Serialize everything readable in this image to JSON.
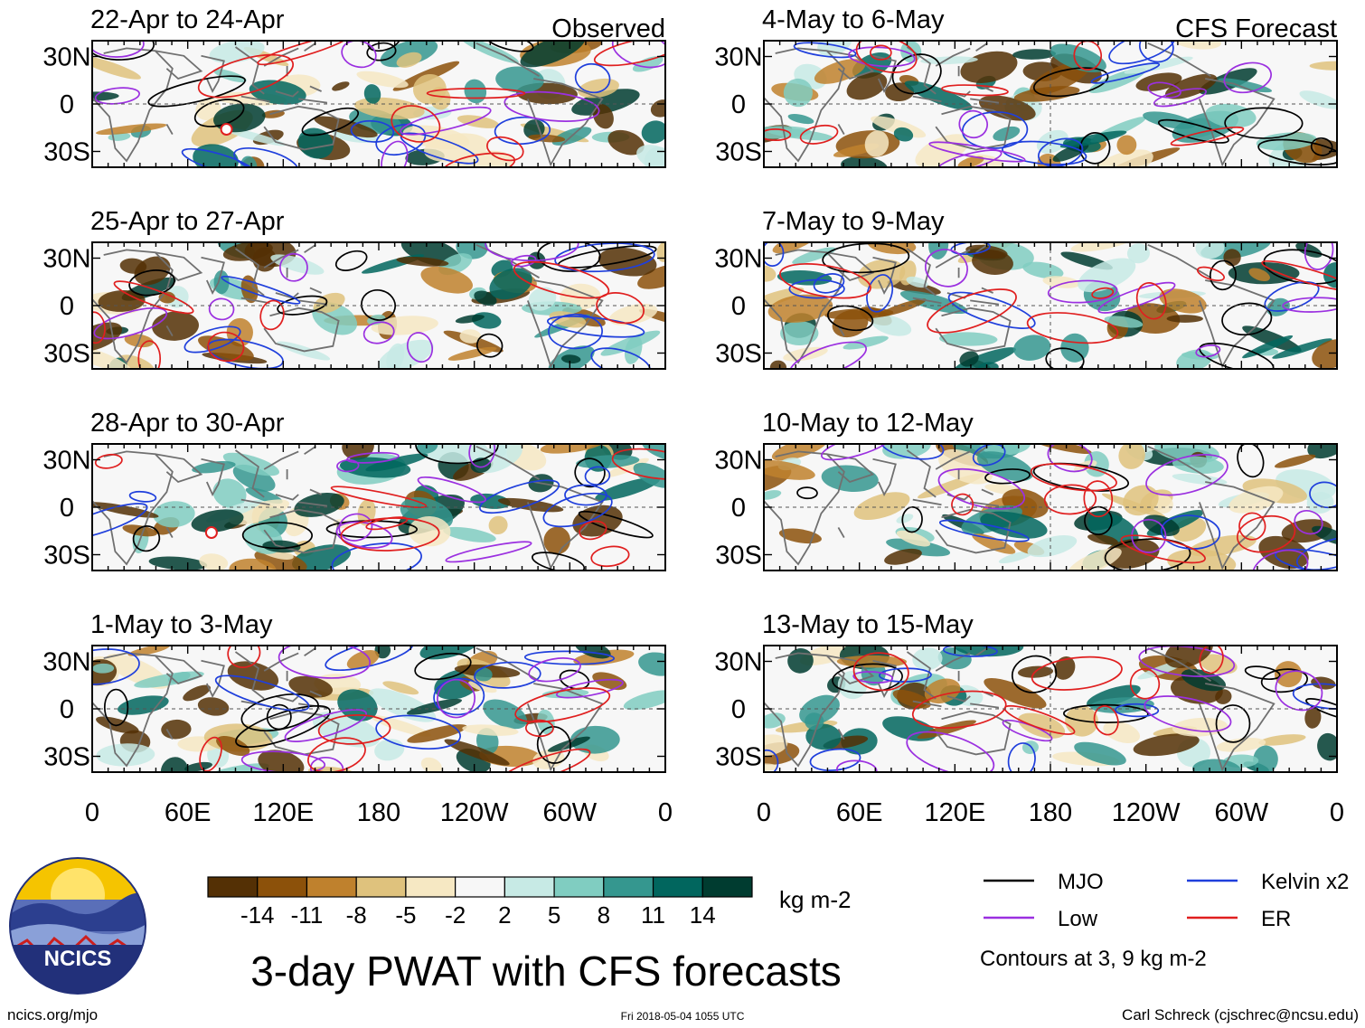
{
  "panels": [
    {
      "date_range": "22-Apr to 24-Apr",
      "tag": "Observed",
      "column": "left",
      "row": 0,
      "seed": 11,
      "tc_markers": 1
    },
    {
      "date_range": "25-Apr to 27-Apr",
      "tag": "",
      "column": "left",
      "row": 1,
      "seed": 23,
      "tc_markers": 0
    },
    {
      "date_range": "28-Apr to 30-Apr",
      "tag": "",
      "column": "left",
      "row": 2,
      "seed": 37,
      "tc_markers": 1
    },
    {
      "date_range": "1-May to 3-May",
      "tag": "",
      "column": "left",
      "row": 3,
      "seed": 41,
      "tc_markers": 0
    },
    {
      "date_range": "4-May to 6-May",
      "tag": "CFS Forecast",
      "column": "right",
      "row": 0,
      "seed": 53,
      "tc_markers": 0
    },
    {
      "date_range": "7-May to 9-May",
      "tag": "",
      "column": "right",
      "row": 1,
      "seed": 67,
      "tc_markers": 0
    },
    {
      "date_range": "10-May to 12-May",
      "tag": "",
      "column": "right",
      "row": 2,
      "seed": 71,
      "tc_markers": 0
    },
    {
      "date_range": "13-May to 15-May",
      "tag": "",
      "column": "right",
      "row": 3,
      "seed": 89,
      "tc_markers": 0
    }
  ],
  "lat_labels": [
    "30N",
    "0",
    "30S"
  ],
  "lon_labels": [
    "0",
    "60E",
    "120E",
    "180",
    "120W",
    "60W",
    "0"
  ],
  "colorbar": {
    "labels": [
      "-14",
      "-11",
      "-8",
      "-5",
      "-2",
      "2",
      "5",
      "8",
      "11",
      "14"
    ],
    "colors": [
      "#543005",
      "#8c510a",
      "#bf812d",
      "#dfc27d",
      "#f6e8c3",
      "#f7f7f7",
      "#c7eae5",
      "#80cdc1",
      "#35978f",
      "#01665e",
      "#003c30"
    ],
    "units": "kg m-2"
  },
  "legend": {
    "items": [
      {
        "label": "MJO",
        "color": "#000000"
      },
      {
        "label": "Kelvin x2",
        "color": "#1f3fdc"
      },
      {
        "label": "Low",
        "color": "#9b30e0"
      },
      {
        "label": "ER",
        "color": "#e01f1f"
      }
    ],
    "note": "Contours at 3, 9 kg m-2"
  },
  "logo": {
    "text": "NCICS"
  },
  "title": "3-day PWAT with CFS forecasts",
  "footer": {
    "left": "ncics.org/mjo",
    "center": "Fri 2018-05-04 1055 UTC",
    "right": "Carl Schreck (cjschrec@ncsu.edu)"
  },
  "contour_colors": {
    "mjo": "#000000",
    "kelvin": "#1f3fdc",
    "low": "#9b30e0",
    "er": "#e01f1f",
    "coast": "#707070"
  }
}
